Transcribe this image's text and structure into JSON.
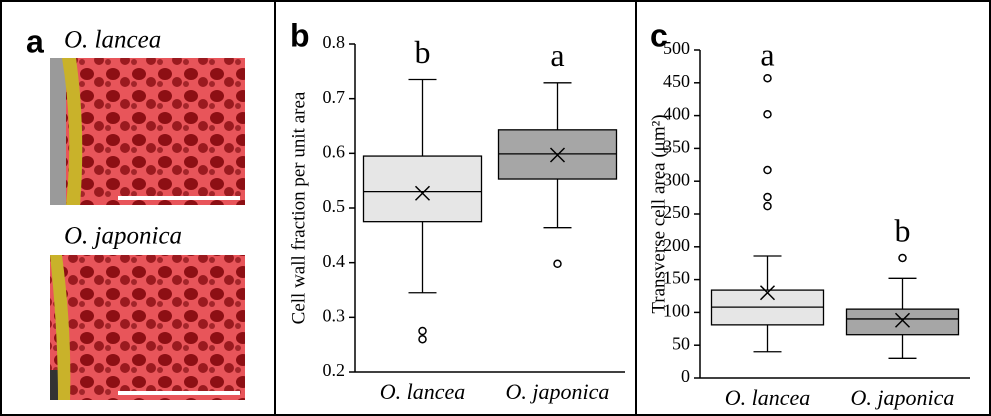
{
  "panel_a": {
    "label": "a",
    "captions": [
      "O. lancea",
      "O. japonica"
    ]
  },
  "chart_data": [
    {
      "type": "box",
      "panel_label": "b",
      "ylabel": "Cell wall fraction per unit area",
      "categories": [
        "O. lancea",
        "O. japonica"
      ],
      "ylim": [
        0.2,
        0.8
      ],
      "yticks": [
        0.2,
        0.3,
        0.4,
        0.5,
        0.6,
        0.7,
        0.8
      ],
      "annotations": [
        "b",
        "a"
      ],
      "boxes": [
        {
          "color": "#e6e6e6",
          "min": 0.345,
          "q1": 0.475,
          "median": 0.53,
          "q3": 0.595,
          "max": 0.735,
          "mean": 0.527,
          "outliers": [
            0.275,
            0.26
          ]
        },
        {
          "color": "#a6a6a6",
          "min": 0.464,
          "q1": 0.553,
          "median": 0.599,
          "q3": 0.643,
          "max": 0.729,
          "mean": 0.597,
          "outliers": [
            0.398
          ]
        }
      ]
    },
    {
      "type": "box",
      "panel_label": "c",
      "ylabel": "Transverse cell area (μm²)",
      "categories": [
        "O. lancea",
        "O. japonica"
      ],
      "ylim": [
        0,
        500
      ],
      "yticks": [
        0,
        50,
        100,
        150,
        200,
        250,
        300,
        350,
        400,
        450,
        500
      ],
      "annotations": [
        "a",
        "b"
      ],
      "boxes": [
        {
          "color": "#e6e6e6",
          "min": 40,
          "q1": 81,
          "median": 108,
          "q3": 134,
          "max": 186,
          "mean": 130,
          "outliers": [
            457,
            402,
            317,
            276,
            262
          ]
        },
        {
          "color": "#a6a6a6",
          "min": 30,
          "q1": 66,
          "median": 90,
          "q3": 105,
          "max": 152,
          "mean": 88,
          "outliers": [
            183
          ]
        }
      ]
    }
  ]
}
